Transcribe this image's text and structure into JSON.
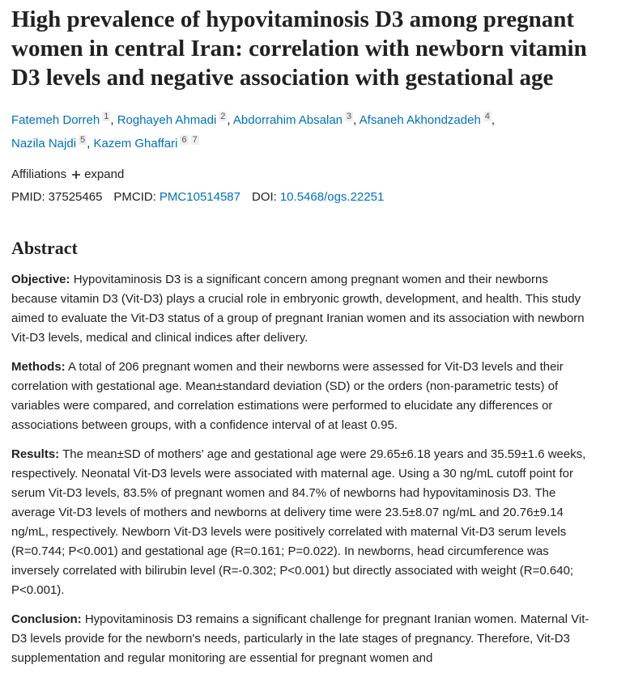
{
  "title": "High prevalence of hypovitaminosis D3 among pregnant women in central Iran: correlation with newborn vitamin D3 levels and negative association with gestational age",
  "author_separator": ",",
  "authors": [
    {
      "name": "Fatemeh Dorreh",
      "affiliations": [
        "1"
      ]
    },
    {
      "name": "Roghayeh Ahmadi",
      "affiliations": [
        "2"
      ]
    },
    {
      "name": "Abdorrahim Absalan",
      "affiliations": [
        "3"
      ]
    },
    {
      "name": "Afsaneh Akhondzadeh",
      "affiliations": [
        "4"
      ]
    },
    {
      "name": "Nazila Najdi",
      "affiliations": [
        "5"
      ]
    },
    {
      "name": "Kazem Ghaffari",
      "affiliations": [
        "6",
        "7"
      ]
    }
  ],
  "affiliations": {
    "label": "Affiliations",
    "toggle": "expand"
  },
  "ids": [
    {
      "label": "PMID:",
      "value": "37525465"
    },
    {
      "label": "PMCID:",
      "value": "PMC10514587"
    },
    {
      "label": "DOI:",
      "value": "10.5468/ogs.22251"
    }
  ],
  "abstract": {
    "heading": "Abstract",
    "sections": [
      {
        "label": "Objective:",
        "text": "Hypovitaminosis D3 is a significant concern among pregnant women and their newborns because vitamin D3 (Vit-D3) plays a crucial role in embryonic growth, development, and health. This study aimed to evaluate the Vit-D3 status of a group of pregnant Iranian women and its association with newborn Vit-D3 levels, medical and clinical indices after delivery."
      },
      {
        "label": "Methods:",
        "text": "A total of 206 pregnant women and their newborns were assessed for Vit-D3 levels and their correlation with gestational age. Mean±standard deviation (SD) or the orders (non-parametric tests) of variables were compared, and correlation estimations were performed to elucidate any differences or associations between groups, with a confidence interval of at least 0.95."
      },
      {
        "label": "Results:",
        "text": "The mean±SD of mothers' age and gestational age were 29.65±6.18 years and 35.59±1.6 weeks, respectively. Neonatal Vit-D3 levels were associated with maternal age. Using a 30 ng/mL cutoff point for serum Vit-D3 levels, 83.5% of pregnant women and 84.7% of newborns had hypovitaminosis D3. The average Vit-D3 levels of mothers and newborns at delivery time were 23.5±8.07 ng/mL and 20.76±9.14 ng/mL, respectively. Newborn Vit-D3 levels were positively correlated with maternal Vit-D3 serum levels (R=0.744; P<0.001) and gestational age (R=0.161; P=0.022). In newborns, head circumference was inversely correlated with bilirubin level (R=-0.302; P<0.001) but directly associated with weight (R=0.640; P<0.001)."
      },
      {
        "label": "Conclusion:",
        "text": "Hypovitaminosis D3 remains a significant challenge for pregnant Iranian women. Maternal Vit-D3 levels provide for the newborn's needs, particularly in the late stages of pregnancy. Therefore, Vit-D3 supplementation and regular monitoring are essential for pregnant women and"
      }
    ]
  }
}
